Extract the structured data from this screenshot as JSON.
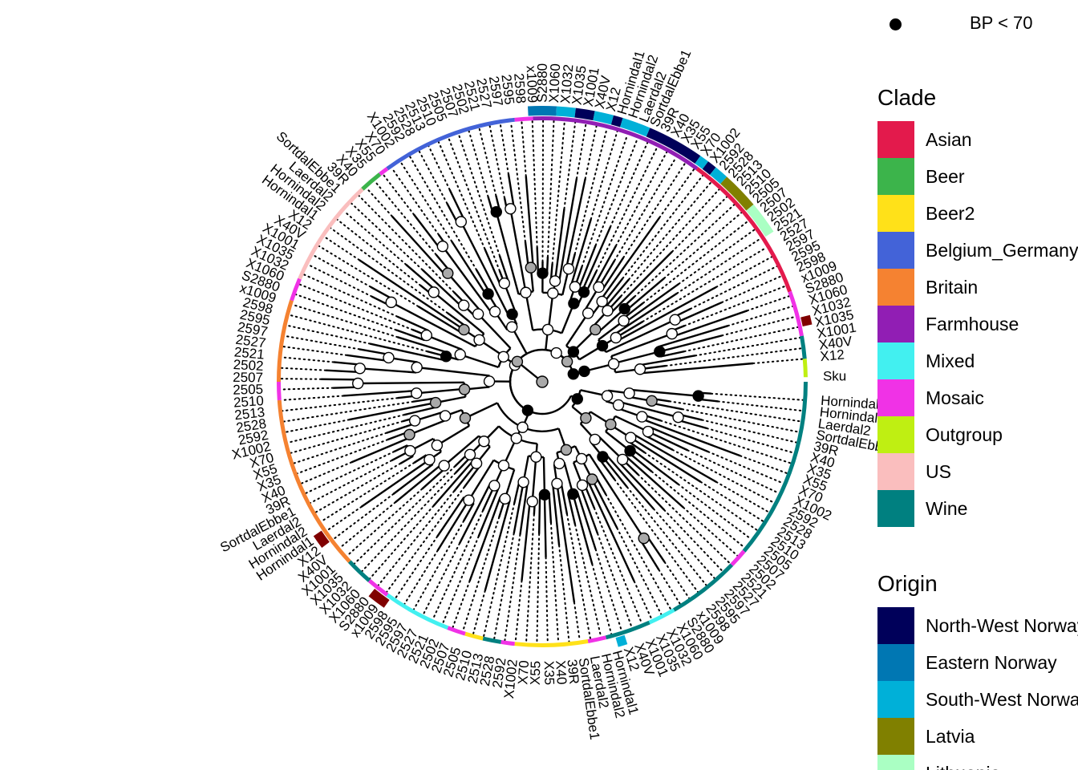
{
  "legend": {
    "bp_label": "BP < 70",
    "clade_title": "Clade",
    "clades": [
      {
        "name": "Asian",
        "color": "#E31A4C"
      },
      {
        "name": "Beer",
        "color": "#3CB44B"
      },
      {
        "name": "Beer2",
        "color": "#FFE119"
      },
      {
        "name": "Belgium_Germany",
        "color": "#4363D8"
      },
      {
        "name": "Britain",
        "color": "#F58231"
      },
      {
        "name": "Farmhouse",
        "color": "#911EB4"
      },
      {
        "name": "Mixed",
        "color": "#42F0F0"
      },
      {
        "name": "Mosaic",
        "color": "#F032E6"
      },
      {
        "name": "Outgroup",
        "color": "#BFEF12"
      },
      {
        "name": "US",
        "color": "#FABEBE"
      },
      {
        "name": "Wine",
        "color": "#008080"
      }
    ],
    "origin_title": "Origin",
    "origins": [
      {
        "name": "North-West Norway",
        "color": "#00005A"
      },
      {
        "name": "Eastern Norway",
        "color": "#0077B3"
      },
      {
        "name": "South-West Norway",
        "color": "#00B0D8"
      },
      {
        "name": "Latvia",
        "color": "#808000"
      },
      {
        "name": "Lithuania",
        "color": "#AAFFC3"
      }
    ],
    "extra_colors": {
      "russia": "#800000"
    }
  },
  "tree": {
    "outgroup_label": "Sku",
    "visible_labels": [
      "Hornindal1",
      "Hornindal2",
      "Laerdal2",
      "SortdalEbbe1",
      "39R",
      "X40",
      "X35",
      "X55",
      "X70",
      "X1002",
      "2592",
      "2528",
      "2513",
      "2510",
      "2505",
      "2507",
      "2502",
      "2521",
      "2527",
      "2597",
      "2595",
      "2598",
      "x1009",
      "S2880",
      "X1060",
      "X1032",
      "X1035",
      "X1001",
      "X40V",
      "X12"
    ]
  }
}
